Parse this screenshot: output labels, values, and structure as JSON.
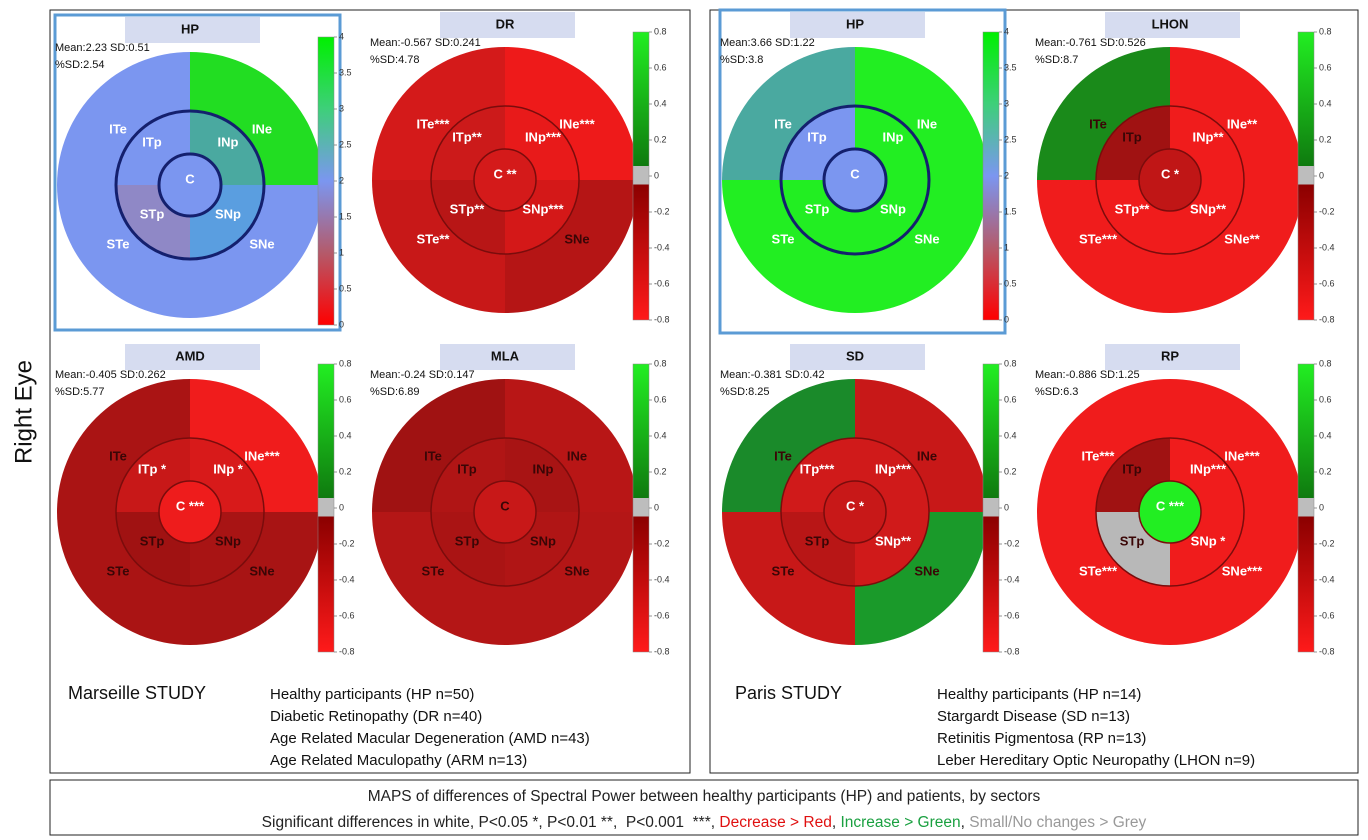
{
  "side_label": "Right Eye",
  "panels": [
    {
      "title": "HP",
      "stats": "Mean:2.23 SD:0.51",
      "sd_pct": "%SD:2.54",
      "frame": true,
      "ring_color": "#14206e",
      "colorbar": {
        "lim": [
          0,
          4
        ],
        "ticks": [
          4,
          3.5,
          3,
          2.5,
          2,
          1.5,
          1,
          0.5,
          0
        ]
      },
      "sectors": [
        {
          "label": "ITe",
          "color": "#7b96f0",
          "significant": true
        },
        {
          "label": "INe",
          "color": "#22dd22",
          "significant": true
        },
        {
          "label": "STe",
          "color": "#7b96f0",
          "significant": true
        },
        {
          "label": "SNe",
          "color": "#7b96f0",
          "significant": true
        },
        {
          "label": "ITp",
          "color": "#7b96f0",
          "significant": true
        },
        {
          "label": "INp",
          "color": "#4aa9a0",
          "significant": true
        },
        {
          "label": "STp",
          "color": "#8f88c6",
          "significant": true
        },
        {
          "label": "SNp",
          "color": "#5a9ee0",
          "significant": true
        },
        {
          "label": "C",
          "color": "#7b96f0",
          "significant": true
        }
      ]
    },
    {
      "title": "DR",
      "stats": "Mean:-0.567 SD:0.241",
      "sd_pct": "%SD:4.78",
      "frame": false,
      "ring_color": "#7a0c0c",
      "colorbar": {
        "lim": [
          -0.8,
          0.8
        ],
        "ticks": [
          0.8,
          0.6,
          0.4,
          0.2,
          0,
          -0.2,
          -0.4,
          -0.6,
          -0.8
        ]
      },
      "sectors": [
        {
          "label": "ITe***",
          "color": "#d41a1a",
          "significant": true
        },
        {
          "label": "INe***",
          "color": "#ee1a1a",
          "significant": true
        },
        {
          "label": "STe**",
          "color": "#c81818",
          "significant": true
        },
        {
          "label": "SNe",
          "color": "#b51515",
          "significant": false
        },
        {
          "label": "ITp**",
          "color": "#cc1a1a",
          "significant": true
        },
        {
          "label": "INp***",
          "color": "#e81a1a",
          "significant": true
        },
        {
          "label": "STp**",
          "color": "#b81616",
          "significant": true
        },
        {
          "label": "SNp***",
          "color": "#d41818",
          "significant": true
        },
        {
          "label": "C **",
          "color": "#d41a1a",
          "significant": true
        }
      ]
    },
    {
      "title": "AMD",
      "stats": "Mean:-0.405 SD:0.262",
      "sd_pct": "%SD:5.77",
      "frame": false,
      "ring_color": "#7a0c0c",
      "colorbar": {
        "lim": [
          -0.8,
          0.8
        ],
        "ticks": [
          0.8,
          0.6,
          0.4,
          0.2,
          0,
          -0.2,
          -0.4,
          -0.6,
          -0.8
        ]
      },
      "sectors": [
        {
          "label": "ITe",
          "color": "#aa1414",
          "significant": false
        },
        {
          "label": "INe***",
          "color": "#f01c1c",
          "significant": true
        },
        {
          "label": "STe",
          "color": "#aa1414",
          "significant": false
        },
        {
          "label": "SNe",
          "color": "#a81414",
          "significant": false
        },
        {
          "label": "ITp *",
          "color": "#c81818",
          "significant": true
        },
        {
          "label": "INp *",
          "color": "#d81a1a",
          "significant": true
        },
        {
          "label": "STp",
          "color": "#a01212",
          "significant": false
        },
        {
          "label": "SNp",
          "color": "#a81414",
          "significant": false
        },
        {
          "label": "C ***",
          "color": "#ee1c1c",
          "significant": true
        }
      ]
    },
    {
      "title": "MLA",
      "stats": "Mean:-0.24 SD:0.147",
      "sd_pct": "%SD:6.89",
      "frame": false,
      "ring_color": "#7a0c0c",
      "colorbar": {
        "lim": [
          -0.8,
          0.8
        ],
        "ticks": [
          0.8,
          0.6,
          0.4,
          0.2,
          0,
          -0.2,
          -0.4,
          -0.6,
          -0.8
        ]
      },
      "sectors": [
        {
          "label": "ITe",
          "color": "#a01212",
          "significant": false
        },
        {
          "label": "INe",
          "color": "#b81616",
          "significant": false
        },
        {
          "label": "STe",
          "color": "#b41616",
          "significant": false
        },
        {
          "label": "SNe",
          "color": "#b41616",
          "significant": false
        },
        {
          "label": "ITp",
          "color": "#b01515",
          "significant": false
        },
        {
          "label": "INp",
          "color": "#a81414",
          "significant": false
        },
        {
          "label": "STp",
          "color": "#aa1414",
          "significant": false
        },
        {
          "label": "SNp",
          "color": "#b01515",
          "significant": false
        },
        {
          "label": "C",
          "color": "#c81818",
          "significant": false
        }
      ]
    },
    {
      "title": "HP",
      "stats": "Mean:3.66 SD:1.22",
      "sd_pct": "%SD:3.8",
      "frame": true,
      "ring_color": "#14206e",
      "colorbar": {
        "lim": [
          0,
          4
        ],
        "ticks": [
          4,
          3.5,
          3,
          2.5,
          2,
          1.5,
          1,
          0.5,
          0
        ]
      },
      "sectors": [
        {
          "label": "ITe",
          "color": "#4aa9a0",
          "significant": true
        },
        {
          "label": "INe",
          "color": "#22ee22",
          "significant": true
        },
        {
          "label": "STe",
          "color": "#22ee22",
          "significant": true
        },
        {
          "label": "SNe",
          "color": "#22ee22",
          "significant": true
        },
        {
          "label": "ITp",
          "color": "#7b96f0",
          "significant": true
        },
        {
          "label": "INp",
          "color": "#22ee22",
          "significant": true
        },
        {
          "label": "STp",
          "color": "#22ee22",
          "significant": true
        },
        {
          "label": "SNp",
          "color": "#22ee22",
          "significant": true
        },
        {
          "label": "C",
          "color": "#7b96f0",
          "significant": true
        }
      ]
    },
    {
      "title": "LHON",
      "stats": "Mean:-0.761 SD:0.526",
      "sd_pct": "%SD:8.7",
      "frame": false,
      "ring_color": "#7a0c0c",
      "colorbar": {
        "lim": [
          -0.8,
          0.8
        ],
        "ticks": [
          0.8,
          0.6,
          0.4,
          0.2,
          0,
          -0.2,
          -0.4,
          -0.6,
          -0.8
        ]
      },
      "sectors": [
        {
          "label": "ITe",
          "color": "#1a8a1a",
          "significant": false
        },
        {
          "label": "INe**",
          "color": "#f01c1c",
          "significant": true
        },
        {
          "label": "STe***",
          "color": "#f01c1c",
          "significant": true
        },
        {
          "label": "SNe**",
          "color": "#f01c1c",
          "significant": true
        },
        {
          "label": "ITp",
          "color": "#a01212",
          "significant": false
        },
        {
          "label": "INp**",
          "color": "#f01c1c",
          "significant": true
        },
        {
          "label": "STp**",
          "color": "#f01c1c",
          "significant": true
        },
        {
          "label": "SNp**",
          "color": "#f01c1c",
          "significant": true
        },
        {
          "label": "C *",
          "color": "#c01616",
          "significant": true
        }
      ]
    },
    {
      "title": "SD",
      "stats": "Mean:-0.381 SD:0.42",
      "sd_pct": "%SD:8.25",
      "frame": false,
      "ring_color": "#7a0c0c",
      "colorbar": {
        "lim": [
          -0.8,
          0.8
        ],
        "ticks": [
          0.8,
          0.6,
          0.4,
          0.2,
          0,
          -0.2,
          -0.4,
          -0.6,
          -0.8
        ]
      },
      "sectors": [
        {
          "label": "ITe",
          "color": "#1a8a2a",
          "significant": false
        },
        {
          "label": "INe",
          "color": "#c81818",
          "significant": false
        },
        {
          "label": "STe",
          "color": "#c81818",
          "significant": false
        },
        {
          "label": "SNe",
          "color": "#1a9a2a",
          "significant": false
        },
        {
          "label": "ITp***",
          "color": "#d01a1a",
          "significant": true
        },
        {
          "label": "INp***",
          "color": "#d01a1a",
          "significant": true
        },
        {
          "label": "STp",
          "color": "#b81616",
          "significant": false
        },
        {
          "label": "SNp**",
          "color": "#d01a1a",
          "significant": true
        },
        {
          "label": "C *",
          "color": "#c81818",
          "significant": true
        }
      ]
    },
    {
      "title": "RP",
      "stats": "Mean:-0.886 SD:1.25",
      "sd_pct": "%SD:6.3",
      "frame": false,
      "ring_color": "#7a0c0c",
      "colorbar": {
        "lim": [
          -0.8,
          0.8
        ],
        "ticks": [
          0.8,
          0.6,
          0.4,
          0.2,
          0,
          -0.2,
          -0.4,
          -0.6,
          -0.8
        ]
      },
      "sectors": [
        {
          "label": "ITe***",
          "color": "#f01c1c",
          "significant": true
        },
        {
          "label": "INe***",
          "color": "#f01c1c",
          "significant": true
        },
        {
          "label": "STe***",
          "color": "#f01c1c",
          "significant": true
        },
        {
          "label": "SNe***",
          "color": "#f01c1c",
          "significant": true
        },
        {
          "label": "ITp",
          "color": "#a01212",
          "significant": false
        },
        {
          "label": "INp***",
          "color": "#f01c1c",
          "significant": true
        },
        {
          "label": "STp",
          "color": "#b8b8b8",
          "significant": false
        },
        {
          "label": "SNp *",
          "color": "#f01c1c",
          "significant": true
        },
        {
          "label": "C ***",
          "color": "#22ee22",
          "significant": true
        }
      ]
    }
  ],
  "studies": [
    {
      "name": "Marseille STUDY",
      "groups": [
        "Healthy participants (HP n=50)",
        "Diabetic Retinopathy (DR n=40)",
        "Age Related Macular Degeneration (AMD n=43)",
        "Age Related Maculopathy (ARM n=13)"
      ]
    },
    {
      "name": "Paris STUDY",
      "groups": [
        "Healthy participants (HP n=14)",
        "Stargardt Disease (SD n=13)",
        "Retinitis Pigmentosa (RP n=13)",
        "Leber Hereditary Optic Neuropathy (LHON n=9)"
      ]
    }
  ],
  "footer": {
    "line1": "MAPS of differences of Spectral Power between healthy participants (HP) and patients, by sectors",
    "line2": [
      {
        "text": "Significant differences in white, P<0.05 *, P<0.01 **,  P<0.001  ***, ",
        "color": "#222222"
      },
      {
        "text": "Decrease > Red",
        "color": "#e01010"
      },
      {
        "text": ", ",
        "color": "#222222"
      },
      {
        "text": "Increase > Green",
        "color": "#1aa040"
      },
      {
        "text": ", ",
        "color": "#222222"
      },
      {
        "text": "Small/No changes > Grey",
        "color": "#999999"
      }
    ]
  }
}
